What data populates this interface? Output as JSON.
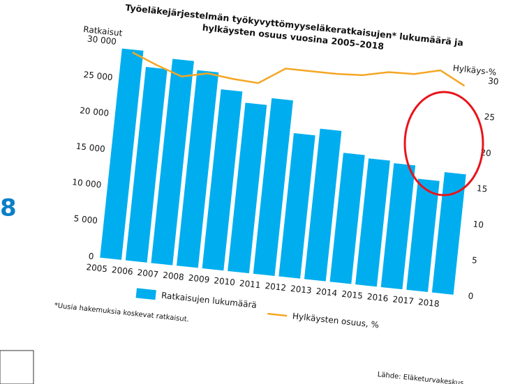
{
  "fragment_text": "8",
  "chart_data": {
    "type": "bar",
    "title": [
      "Työeläkejärjestelmän työkyvyttömyyseläkeratkaisujen* lukumäärä ja",
      "hylkäysten osuus vuosina 2005–2018"
    ],
    "y_axis_label": "Ratkaisut",
    "y2_axis_label": "Hylkäys-%",
    "footnote": "*Uusia hakemuksia koskevat ratkaisut.",
    "source": "Lähde: Eläketurvakeskus",
    "categories": [
      "2005",
      "2006",
      "2007",
      "2008",
      "2009",
      "2010",
      "2011",
      "2012",
      "2013",
      "2014",
      "2015",
      "2016",
      "2017",
      "2018"
    ],
    "series": [
      {
        "name": "Ratkaisujen lukumäärä",
        "type": "bar",
        "color": "#00aeef",
        "values": [
          29200,
          27000,
          28500,
          27300,
          25000,
          23500,
          24500,
          20000,
          21000,
          18000,
          17600,
          17300,
          15500,
          16800
        ]
      },
      {
        "name": "Hylkäysten osuus, %",
        "type": "line",
        "axis": "y2",
        "color": "#f5a623",
        "values": [
          28.8,
          27.4,
          26.2,
          27,
          26.6,
          26.4,
          28.8,
          28.8,
          28.8,
          29,
          29.8,
          29.9,
          30.8,
          29
        ]
      }
    ],
    "ylim": [
      0,
      30000
    ],
    "yticks": [
      0,
      {
        "value": 5000,
        "label": "5 000"
      },
      {
        "value": 10000,
        "label": "10 000"
      },
      {
        "value": 15000,
        "label": "15 000"
      },
      {
        "value": 20000,
        "label": "20 000"
      },
      {
        "value": 25000,
        "label": "25 000"
      },
      {
        "value": 30000,
        "label": "30 000"
      }
    ],
    "y2lim": [
      0,
      30
    ],
    "y2ticks": [
      0,
      5,
      10,
      15,
      20,
      25,
      30
    ],
    "grid": false
  }
}
